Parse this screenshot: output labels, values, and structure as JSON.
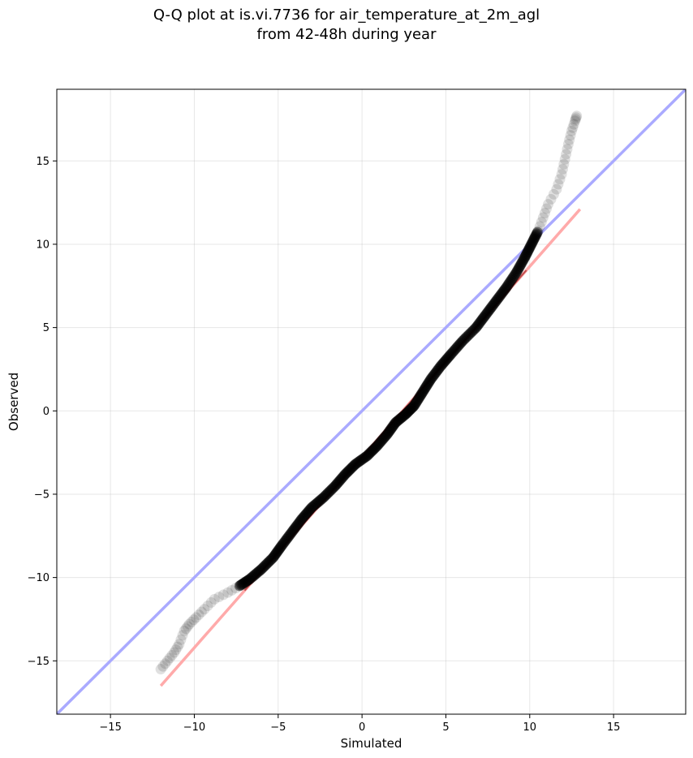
{
  "chart_data": {
    "type": "scatter",
    "title_lines": [
      "Q-Q plot at is.vi.7736 for air_temperature_at_2m_agl",
      "from 42-48h during year"
    ],
    "xlabel": "Simulated",
    "ylabel": "Observed",
    "xlim": [
      -18.2,
      19.3
    ],
    "ylim": [
      -18.2,
      19.3
    ],
    "xticks": [
      -15,
      -10,
      -5,
      0,
      5,
      10,
      15
    ],
    "yticks": [
      -15,
      -10,
      -5,
      0,
      5,
      10,
      15
    ],
    "tick_labels": [
      "−15",
      "−10",
      "−5",
      "0",
      "5",
      "10",
      "15"
    ],
    "grid": true,
    "colors": {
      "points": "#000000",
      "identity_line": "#aaaaff",
      "fit_line": "#ffaaaa",
      "fit_line_dark": "#8b0000"
    },
    "identity_line": {
      "x": [
        -18.2,
        19.3
      ],
      "y": [
        -18.2,
        19.3
      ]
    },
    "fit_line": {
      "x": [
        -12.0,
        13.0
      ],
      "y": [
        -16.5,
        12.1
      ]
    },
    "qq_curve": [
      [
        -12.0,
        -15.5
      ],
      [
        -11.6,
        -15.0
      ],
      [
        -11.2,
        -14.5
      ],
      [
        -10.9,
        -14.0
      ],
      [
        -10.6,
        -13.2
      ],
      [
        -10.3,
        -12.8
      ],
      [
        -9.9,
        -12.4
      ],
      [
        -9.4,
        -11.9
      ],
      [
        -8.8,
        -11.3
      ],
      [
        -8.0,
        -10.9
      ],
      [
        -7.3,
        -10.5
      ],
      [
        -6.7,
        -10.1
      ],
      [
        -6.0,
        -9.5
      ],
      [
        -5.3,
        -8.8
      ],
      [
        -4.8,
        -8.1
      ],
      [
        -4.2,
        -7.3
      ],
      [
        -3.6,
        -6.5
      ],
      [
        -3.0,
        -5.8
      ],
      [
        -2.3,
        -5.2
      ],
      [
        -1.6,
        -4.5
      ],
      [
        -1.0,
        -3.8
      ],
      [
        -0.4,
        -3.2
      ],
      [
        0.3,
        -2.7
      ],
      [
        0.9,
        -2.1
      ],
      [
        1.5,
        -1.4
      ],
      [
        2.0,
        -0.7
      ],
      [
        2.6,
        -0.2
      ],
      [
        3.1,
        0.3
      ],
      [
        3.6,
        1.1
      ],
      [
        4.1,
        1.9
      ],
      [
        4.7,
        2.7
      ],
      [
        5.3,
        3.4
      ],
      [
        6.0,
        4.2
      ],
      [
        6.8,
        5.0
      ],
      [
        7.4,
        5.8
      ],
      [
        8.0,
        6.6
      ],
      [
        8.6,
        7.4
      ],
      [
        9.2,
        8.3
      ],
      [
        9.7,
        9.2
      ],
      [
        10.1,
        10.0
      ],
      [
        10.5,
        10.8
      ],
      [
        10.8,
        11.6
      ],
      [
        11.1,
        12.4
      ],
      [
        11.6,
        13.3
      ],
      [
        11.9,
        14.2
      ],
      [
        12.1,
        15.1
      ],
      [
        12.3,
        16.0
      ],
      [
        12.5,
        16.8
      ],
      [
        12.7,
        17.4
      ],
      [
        12.8,
        17.7
      ]
    ]
  }
}
